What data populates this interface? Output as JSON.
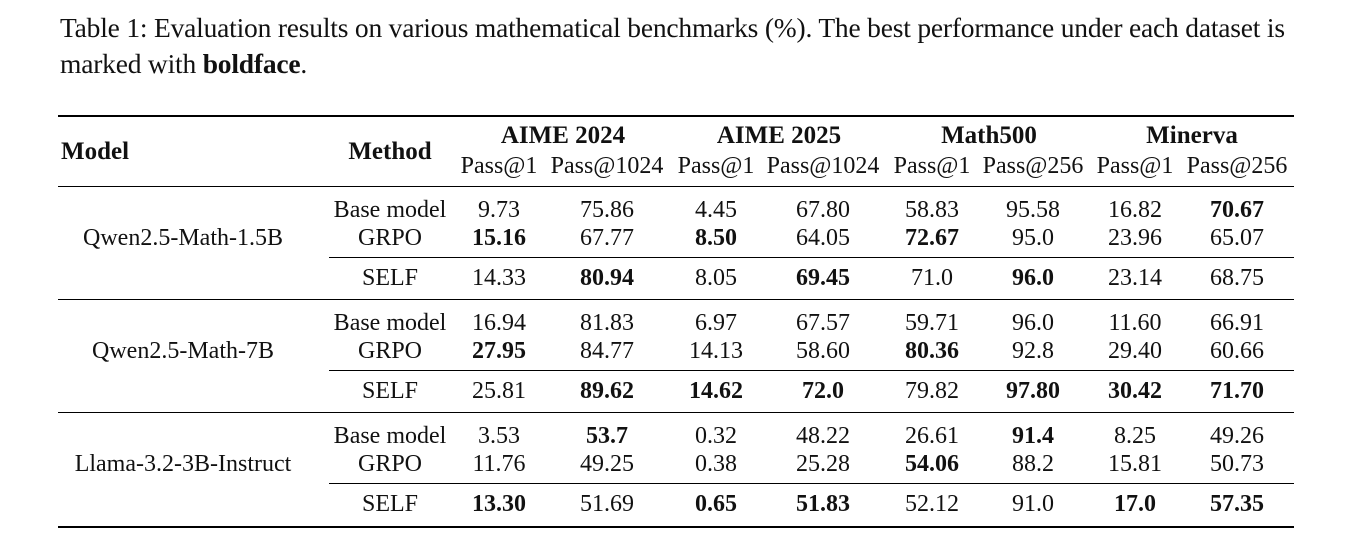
{
  "caption": {
    "prefix": "Table 1: Evaluation results on various mathematical benchmarks (%). The best performance under each dataset is marked with ",
    "bold_word": "boldface",
    "suffix": "."
  },
  "headers": {
    "model": "Model",
    "method": "Method",
    "datasets": [
      "AIME 2024",
      "AIME 2025",
      "Math500",
      "Minerva"
    ],
    "sub": [
      "Pass@1",
      "Pass@1024",
      "Pass@1",
      "Pass@1024",
      "Pass@1",
      "Pass@256",
      "Pass@1",
      "Pass@256"
    ]
  },
  "groups": [
    {
      "model": "Qwen2.5-Math-1.5B",
      "rows": [
        {
          "method": "Base model",
          "values": [
            "9.73",
            "75.86",
            "4.45",
            "67.80",
            "58.83",
            "95.58",
            "16.82",
            "70.67"
          ],
          "bold": [
            false,
            false,
            false,
            false,
            false,
            false,
            false,
            true
          ]
        },
        {
          "method": "GRPO",
          "values": [
            "15.16",
            "67.77",
            "8.50",
            "64.05",
            "72.67",
            "95.0",
            "23.96",
            "65.07"
          ],
          "bold": [
            true,
            false,
            true,
            false,
            true,
            false,
            false,
            false
          ]
        },
        {
          "method": "SELF",
          "values": [
            "14.33",
            "80.94",
            "8.05",
            "69.45",
            "71.0",
            "96.0",
            "23.14",
            "68.75"
          ],
          "bold": [
            false,
            true,
            false,
            true,
            false,
            true,
            false,
            false
          ]
        }
      ]
    },
    {
      "model": "Qwen2.5-Math-7B",
      "rows": [
        {
          "method": "Base model",
          "values": [
            "16.94",
            "81.83",
            "6.97",
            "67.57",
            "59.71",
            "96.0",
            "11.60",
            "66.91"
          ],
          "bold": [
            false,
            false,
            false,
            false,
            false,
            false,
            false,
            false
          ]
        },
        {
          "method": "GRPO",
          "values": [
            "27.95",
            "84.77",
            "14.13",
            "58.60",
            "80.36",
            "92.8",
            "29.40",
            "60.66"
          ],
          "bold": [
            true,
            false,
            false,
            false,
            true,
            false,
            false,
            false
          ]
        },
        {
          "method": "SELF",
          "values": [
            "25.81",
            "89.62",
            "14.62",
            "72.0",
            "79.82",
            "97.80",
            "30.42",
            "71.70"
          ],
          "bold": [
            false,
            true,
            true,
            true,
            false,
            true,
            true,
            true
          ]
        }
      ]
    },
    {
      "model": "Llama-3.2-3B-Instruct",
      "rows": [
        {
          "method": "Base model",
          "values": [
            "3.53",
            "53.7",
            "0.32",
            "48.22",
            "26.61",
            "91.4",
            "8.25",
            "49.26"
          ],
          "bold": [
            false,
            true,
            false,
            false,
            false,
            true,
            false,
            false
          ]
        },
        {
          "method": "GRPO",
          "values": [
            "11.76",
            "49.25",
            "0.38",
            "25.28",
            "54.06",
            "88.2",
            "15.81",
            "50.73"
          ],
          "bold": [
            false,
            false,
            false,
            false,
            true,
            false,
            false,
            false
          ]
        },
        {
          "method": "SELF",
          "values": [
            "13.30",
            "51.69",
            "0.65",
            "51.83",
            "52.12",
            "91.0",
            "17.0",
            "57.35"
          ],
          "bold": [
            true,
            false,
            true,
            true,
            false,
            false,
            true,
            true
          ]
        }
      ]
    }
  ]
}
